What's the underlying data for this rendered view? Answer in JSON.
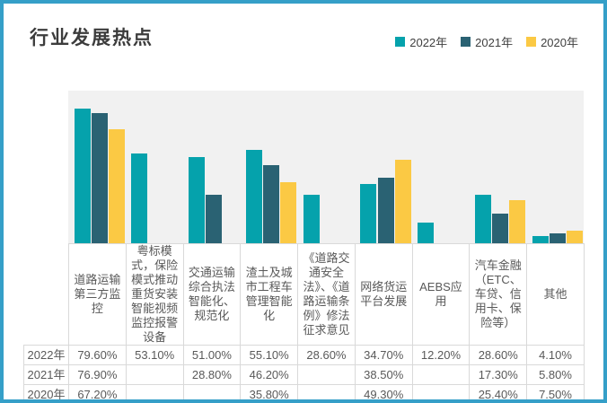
{
  "title": "行业发展热点",
  "colors": {
    "frame_border": "#359FC8",
    "plot_background": "#F1F1F1",
    "series_2022": "#05A2AC",
    "series_2021": "#2A6273",
    "series_2020": "#FBC944",
    "table_border": "#D9D9D9",
    "table_text": "#595959",
    "title_text": "#3C3C3C"
  },
  "legend": [
    {
      "label": "2022年",
      "color": "#05A2AC"
    },
    {
      "label": "2021年",
      "color": "#2A6273"
    },
    {
      "label": "2020年",
      "color": "#FBC944"
    }
  ],
  "chart_data": {
    "type": "bar",
    "title": "行业发展热点",
    "xlabel": "",
    "ylabel": "",
    "ylim": [
      0,
      90
    ],
    "grid": false,
    "legend_position": "top-right",
    "value_unit": "percent",
    "categories": [
      "道路运输第三方监控",
      "粤标模式，保险模式推动重货安装智能视频监控报警设备",
      "交通运输综合执法智能化、规范化",
      "渣土及城市工程车管理智能化",
      "《道路交通安全法》、《道路运输条例》修法征求意见",
      "网络货运平台发展",
      "AEBS应用",
      "汽车金融（ETC、车贷、信用卡、保险等）",
      "其他"
    ],
    "series": [
      {
        "name": "2022年",
        "color": "#05A2AC",
        "values": [
          79.6,
          53.1,
          51.0,
          55.1,
          28.6,
          34.7,
          12.2,
          28.6,
          4.1
        ]
      },
      {
        "name": "2021年",
        "color": "#2A6273",
        "values": [
          76.9,
          null,
          28.8,
          46.2,
          null,
          38.5,
          null,
          17.3,
          5.8
        ]
      },
      {
        "name": "2020年",
        "color": "#FBC944",
        "values": [
          67.2,
          null,
          null,
          35.8,
          null,
          49.3,
          null,
          25.4,
          7.5
        ]
      }
    ],
    "table": {
      "corner_label": "",
      "row_labels": [
        "2022年",
        "2021年",
        "2020年"
      ],
      "cells": [
        [
          "79.60%",
          "53.10%",
          "51.00%",
          "55.10%",
          "28.60%",
          "34.70%",
          "12.20%",
          "28.60%",
          "4.10%"
        ],
        [
          "76.90%",
          "",
          "28.80%",
          "46.20%",
          "",
          "38.50%",
          "",
          "17.30%",
          "5.80%"
        ],
        [
          "67.20%",
          "",
          "",
          "35.80%",
          "",
          "49.30%",
          "",
          "25.40%",
          "7.50%"
        ]
      ]
    }
  }
}
